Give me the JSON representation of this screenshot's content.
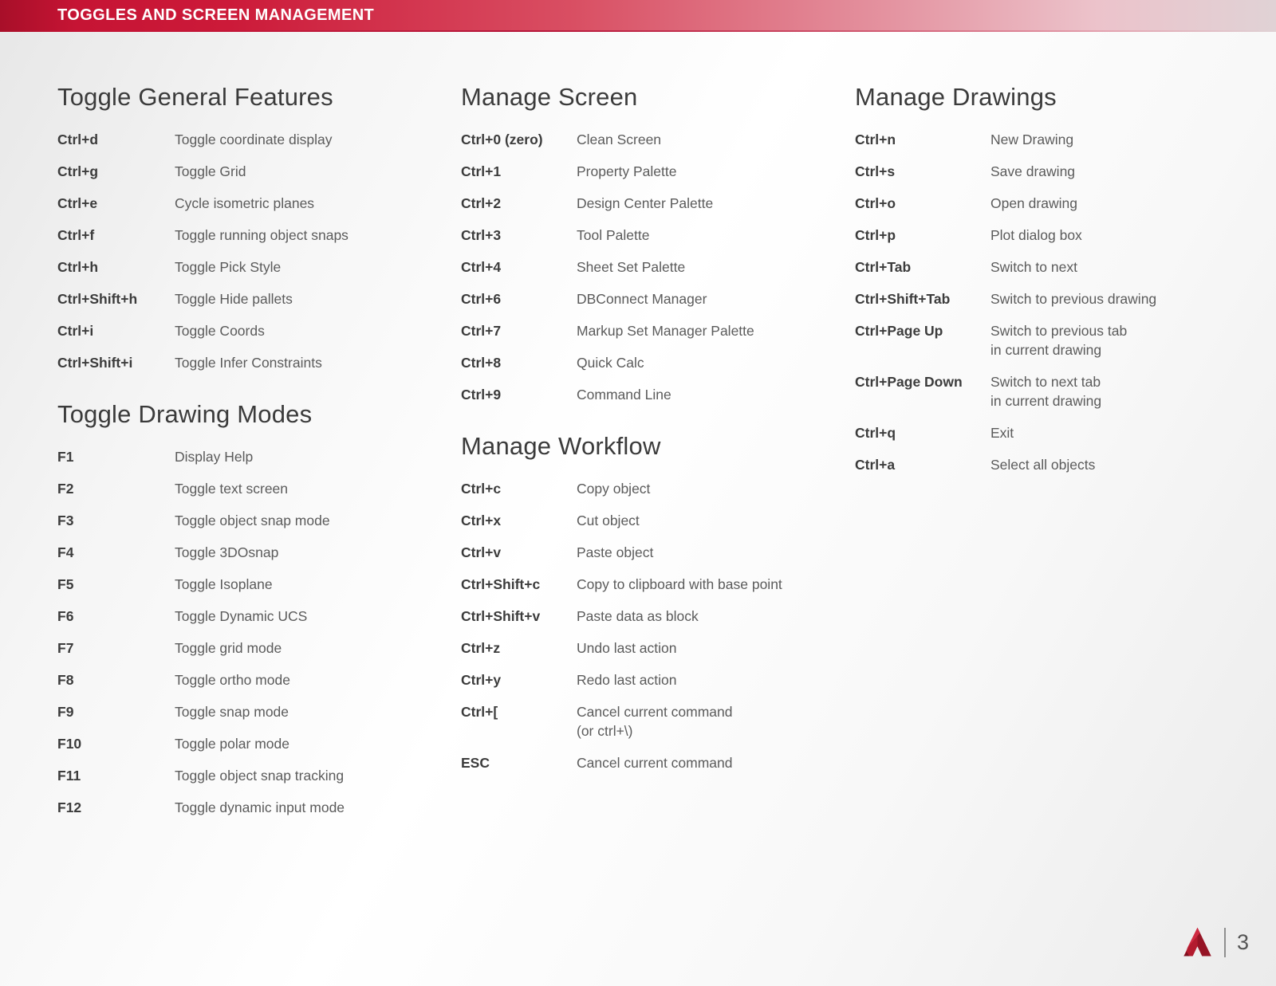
{
  "header": {
    "title": "TOGGLES AND SCREEN MANAGEMENT"
  },
  "colors": {
    "banner_red_left": "#c61434",
    "banner_red_mid": "#d94f63",
    "banner_fade_right": "#e0d2d5",
    "heading_text": "#3b3b3b",
    "key_text": "#3c3c3c",
    "description_text": "#5b5b5b",
    "logo_red": "#b31b2e",
    "page_number_text": "#555555"
  },
  "columns": [
    {
      "sections": [
        {
          "title": "Toggle General Features",
          "shortcuts": [
            {
              "keys": "Ctrl+d",
              "description": "Toggle coordinate display"
            },
            {
              "keys": "Ctrl+g",
              "description": "Toggle Grid"
            },
            {
              "keys": "Ctrl+e",
              "description": "Cycle isometric planes"
            },
            {
              "keys": "Ctrl+f",
              "description": "Toggle running object snaps"
            },
            {
              "keys": "Ctrl+h",
              "description": "Toggle Pick Style"
            },
            {
              "keys": "Ctrl+Shift+h",
              "description": "Toggle Hide pallets"
            },
            {
              "keys": "Ctrl+i",
              "description": "Toggle Coords"
            },
            {
              "keys": "Ctrl+Shift+i",
              "description": "Toggle Infer Constraints"
            }
          ]
        },
        {
          "title": "Toggle Drawing Modes",
          "shortcuts": [
            {
              "keys": "F1",
              "description": "Display Help"
            },
            {
              "keys": "F2",
              "description": "Toggle text screen"
            },
            {
              "keys": "F3",
              "description": "Toggle object snap mode"
            },
            {
              "keys": "F4",
              "description": "Toggle 3DOsnap"
            },
            {
              "keys": "F5",
              "description": "Toggle Isoplane"
            },
            {
              "keys": "F6",
              "description": "Toggle Dynamic UCS"
            },
            {
              "keys": "F7",
              "description": "Toggle grid mode"
            },
            {
              "keys": "F8",
              "description": "Toggle ortho mode"
            },
            {
              "keys": "F9",
              "description": "Toggle snap mode"
            },
            {
              "keys": "F10",
              "description": "Toggle polar mode"
            },
            {
              "keys": "F11",
              "description": "Toggle object snap tracking"
            },
            {
              "keys": "F12",
              "description": "Toggle dynamic input mode"
            }
          ]
        }
      ]
    },
    {
      "sections": [
        {
          "title": "Manage Screen",
          "shortcuts": [
            {
              "keys": "Ctrl+0 (zero)",
              "description": "Clean Screen"
            },
            {
              "keys": "Ctrl+1",
              "description": "Property Palette"
            },
            {
              "keys": "Ctrl+2",
              "description": "Design Center Palette"
            },
            {
              "keys": "Ctrl+3",
              "description": "Tool Palette"
            },
            {
              "keys": "Ctrl+4",
              "description": "Sheet Set Palette"
            },
            {
              "keys": "Ctrl+6",
              "description": "DBConnect Manager"
            },
            {
              "keys": "Ctrl+7",
              "description": "Markup Set Manager Palette"
            },
            {
              "keys": "Ctrl+8",
              "description": "Quick Calc"
            },
            {
              "keys": "Ctrl+9",
              "description": "Command Line"
            }
          ]
        },
        {
          "title": "Manage Workflow",
          "shortcuts": [
            {
              "keys": "Ctrl+c",
              "description": "Copy object"
            },
            {
              "keys": "Ctrl+x",
              "description": "Cut object"
            },
            {
              "keys": "Ctrl+v",
              "description": "Paste object"
            },
            {
              "keys": "Ctrl+Shift+c",
              "description": "Copy to clipboard with base point"
            },
            {
              "keys": "Ctrl+Shift+v",
              "description": "Paste data as block"
            },
            {
              "keys": "Ctrl+z",
              "description": "Undo last action"
            },
            {
              "keys": "Ctrl+y",
              "description": "Redo last action"
            },
            {
              "keys": "Ctrl+[",
              "description": "Cancel current command\n(or ctrl+\\)"
            },
            {
              "keys": "ESC",
              "description": "Cancel current command"
            }
          ]
        }
      ]
    },
    {
      "sections": [
        {
          "title": "Manage Drawings",
          "shortcuts": [
            {
              "keys": "Ctrl+n",
              "description": "New Drawing"
            },
            {
              "keys": "Ctrl+s",
              "description": "Save drawing"
            },
            {
              "keys": "Ctrl+o",
              "description": "Open drawing"
            },
            {
              "keys": "Ctrl+p",
              "description": "Plot dialog box"
            },
            {
              "keys": "Ctrl+Tab",
              "description": "Switch to next"
            },
            {
              "keys": "Ctrl+Shift+Tab",
              "description": "Switch to previous drawing"
            },
            {
              "keys": "Ctrl+Page Up",
              "description": "Switch to previous tab\nin current drawing"
            },
            {
              "keys": "Ctrl+Page Down",
              "description": "Switch to next tab\nin current drawing"
            },
            {
              "keys": "Ctrl+q",
              "description": "Exit"
            },
            {
              "keys": "Ctrl+a",
              "description": "Select all objects"
            }
          ]
        }
      ]
    }
  ],
  "footer": {
    "logo": "autocad-logo",
    "page_number": "3"
  }
}
